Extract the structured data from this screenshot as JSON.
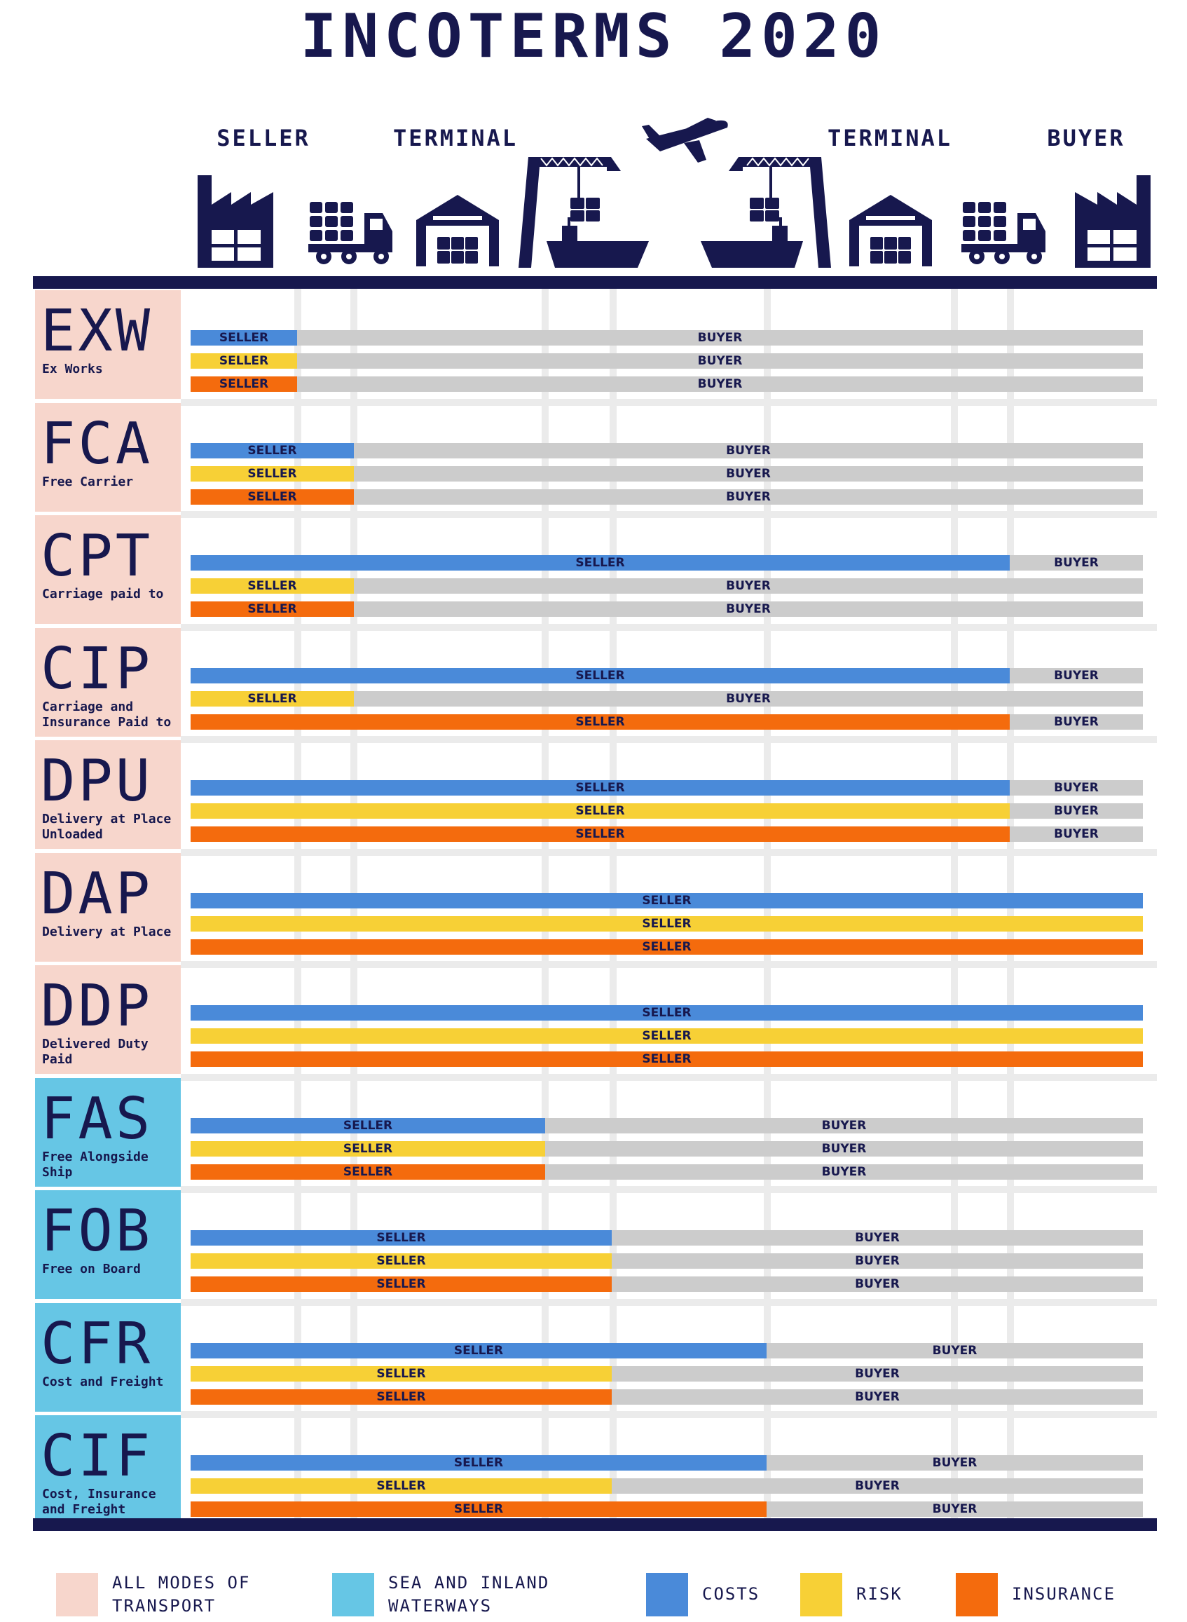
{
  "title": "INCOTERMS 2020",
  "headers": [
    "SELLER",
    "TERMINAL",
    "TERMINAL",
    "BUYER"
  ],
  "icons": [
    "factory-icon",
    "truck-icon",
    "warehouse-icon",
    "port-crane-icon",
    "airplane-icon",
    "port-crane-icon",
    "warehouse-icon",
    "truck-icon",
    "factory-icon"
  ],
  "colors": {
    "navy": "#17184e",
    "costs": "#4a8ad9",
    "risk": "#f7d036",
    "insurance": "#f46b0d",
    "buyer": "#cccccc",
    "all_modes": "#f7d6cc",
    "sea": "#66c6e5"
  },
  "terms": [
    {
      "code": "EXW",
      "desc": "Ex Works",
      "group": "all",
      "bars": [
        {
          "split": 1,
          "left": "SELLER",
          "right": "BUYER"
        },
        {
          "split": 1,
          "left": "SELLER",
          "right": "BUYER"
        },
        {
          "split": 1,
          "left": "SELLER",
          "right": "BUYER"
        }
      ]
    },
    {
      "code": "FCA",
      "desc": "Free Carrier",
      "group": "all",
      "bars": [
        {
          "split": 2,
          "left": "SELLER",
          "right": "BUYER"
        },
        {
          "split": 2,
          "left": "SELLER",
          "right": "BUYER"
        },
        {
          "split": 2,
          "left": "SELLER",
          "right": "BUYER"
        }
      ]
    },
    {
      "code": "CPT",
      "desc": "Carriage paid to",
      "group": "all",
      "bars": [
        {
          "split": 7,
          "left": "SELLER",
          "right": "BUYER"
        },
        {
          "split": 2,
          "left": "SELLER",
          "right": "BUYER"
        },
        {
          "split": 2,
          "left": "SELLER",
          "right": "BUYER"
        }
      ]
    },
    {
      "code": "CIP",
      "desc": "Carriage and Insurance Paid to",
      "group": "all",
      "bars": [
        {
          "split": 7,
          "left": "SELLER",
          "right": "BUYER"
        },
        {
          "split": 2,
          "left": "SELLER",
          "right": "BUYER"
        },
        {
          "split": 7,
          "left": "SELLER",
          "right": "BUYER"
        }
      ]
    },
    {
      "code": "DPU",
      "desc": "Delivery at Place Unloaded",
      "group": "all",
      "bars": [
        {
          "split": 7,
          "left": "SELLER",
          "right": "BUYER"
        },
        {
          "split": 7,
          "left": "SELLER",
          "right": "BUYER"
        },
        {
          "split": 7,
          "left": "SELLER",
          "right": "BUYER"
        }
      ]
    },
    {
      "code": "DAP",
      "desc": "Delivery at Place",
      "group": "all",
      "bars": [
        {
          "split": 8,
          "left": "SELLER",
          "right": "BUYER"
        },
        {
          "split": 8,
          "left": "SELLER",
          "right": "BUYER"
        },
        {
          "split": 8,
          "left": "SELLER",
          "right": "BUYER"
        }
      ]
    },
    {
      "code": "DDP",
      "desc": "Delivered Duty Paid",
      "group": "all",
      "bars": [
        {
          "split": 8,
          "left": "SELLER",
          "right": "BUYER"
        },
        {
          "split": 8,
          "left": "SELLER",
          "right": "BUYER"
        },
        {
          "split": 8,
          "left": "SELLER",
          "right": "BUYER"
        }
      ]
    },
    {
      "code": "FAS",
      "desc": "Free Alongside Ship",
      "group": "sea",
      "bars": [
        {
          "split": 3,
          "left": "SELLER",
          "right": "BUYER"
        },
        {
          "split": 3,
          "left": "SELLER",
          "right": "BUYER"
        },
        {
          "split": 3,
          "left": "SELLER",
          "right": "BUYER"
        }
      ]
    },
    {
      "code": "FOB",
      "desc": "Free on Board",
      "group": "sea",
      "bars": [
        {
          "split": 4,
          "left": "SELLER",
          "right": "BUYER"
        },
        {
          "split": 4,
          "left": "SELLER",
          "right": "BUYER"
        },
        {
          "split": 4,
          "left": "SELLER",
          "right": "BUYER"
        }
      ]
    },
    {
      "code": "CFR",
      "desc": "Cost and Freight",
      "group": "sea",
      "bars": [
        {
          "split": 5,
          "left": "SELLER",
          "right": "BUYER"
        },
        {
          "split": 4,
          "left": "SELLER",
          "right": "BUYER"
        },
        {
          "split": 4,
          "left": "SELLER",
          "right": "BUYER"
        }
      ]
    },
    {
      "code": "CIF",
      "desc": "Cost, Insurance and Freight",
      "group": "sea",
      "bars": [
        {
          "split": 5,
          "left": "SELLER",
          "right": "BUYER"
        },
        {
          "split": 4,
          "left": "SELLER",
          "right": "BUYER"
        },
        {
          "split": 5,
          "left": "SELLER",
          "right": "BUYER"
        }
      ]
    }
  ],
  "legend": [
    {
      "text": "ALL MODES OF TRANSPORT",
      "color": "#f7d6cc"
    },
    {
      "text": "SEA AND INLAND WATERWAYS",
      "color": "#66c6e5"
    },
    {
      "text": "COSTS",
      "color": "#4a8ad9"
    },
    {
      "text": "RISK",
      "color": "#f7d036"
    },
    {
      "text": "INSURANCE",
      "color": "#f46b0d"
    }
  ]
}
